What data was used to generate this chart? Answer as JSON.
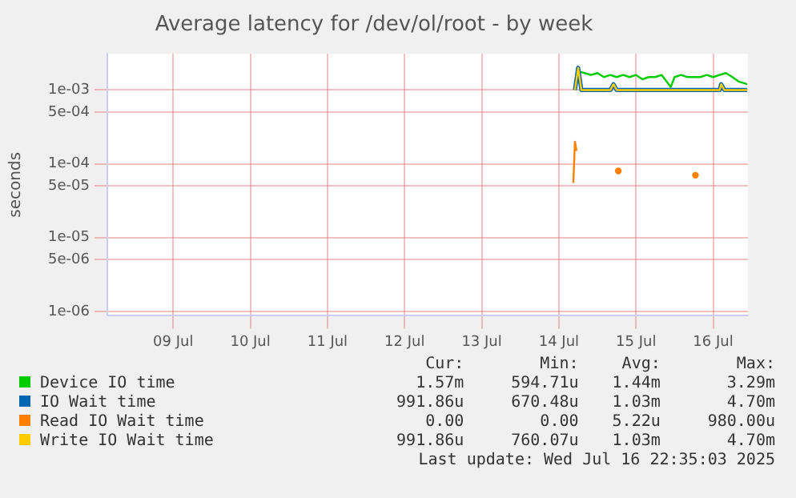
{
  "chart_data": {
    "type": "line",
    "title": "Average latency for /dev/ol/root - by week",
    "ylabel": "seconds",
    "log": "y",
    "grid": true,
    "legend": "bottom",
    "marker": "none",
    "line_style": "solid",
    "xlim": [
      "2025-07-08T15:30",
      "2025-07-16T22:50"
    ],
    "xticks": [
      {
        "value": "2025-07-09T12:00",
        "label": "09 Jul"
      },
      {
        "value": "2025-07-10T12:00",
        "label": "10 Jul"
      },
      {
        "value": "2025-07-11T12:00",
        "label": "11 Jul"
      },
      {
        "value": "2025-07-12T12:00",
        "label": "12 Jul"
      },
      {
        "value": "2025-07-13T12:00",
        "label": "13 Jul"
      },
      {
        "value": "2025-07-14T12:00",
        "label": "14 Jul"
      },
      {
        "value": "2025-07-15T12:00",
        "label": "15 Jul"
      },
      {
        "value": "2025-07-16T12:00",
        "label": "16 Jul"
      }
    ],
    "ylim": [
      8.7e-07,
      0.0031
    ],
    "yticks": [
      {
        "value": 1e-06,
        "label": "1e-06"
      },
      {
        "value": 5e-06,
        "label": "5e-06"
      },
      {
        "value": 1e-05,
        "label": "1e-05"
      },
      {
        "value": 5e-05,
        "label": "5e-05"
      },
      {
        "value": 0.0001,
        "label": "1e-04"
      },
      {
        "value": 0.0005,
        "label": "5e-04"
      },
      {
        "value": 0.001,
        "label": "1e-03"
      }
    ],
    "series": [
      {
        "name": "Device IO time",
        "color": "#00cc00",
        "x": [
          "2025-07-14T17:00",
          "2025-07-14T18:00",
          "2025-07-14T20:00",
          "2025-07-14T22:00",
          "2025-07-15T00:00",
          "2025-07-15T02:00",
          "2025-07-15T04:00",
          "2025-07-15T06:00",
          "2025-07-15T08:00",
          "2025-07-15T10:00",
          "2025-07-15T12:00",
          "2025-07-15T14:00",
          "2025-07-15T16:00",
          "2025-07-15T18:00",
          "2025-07-15T20:00",
          "2025-07-15T22:50",
          "2025-07-16T00:00",
          "2025-07-16T02:00",
          "2025-07-16T04:00",
          "2025-07-16T06:00",
          "2025-07-16T08:00",
          "2025-07-16T10:00",
          "2025-07-16T12:00",
          "2025-07-16T14:00",
          "2025-07-16T16:00",
          "2025-07-16T18:00",
          "2025-07-16T20:00",
          "2025-07-16T22:35"
        ],
        "values": [
          0.001,
          0.0018,
          0.0017,
          0.0016,
          0.0017,
          0.0015,
          0.0016,
          0.0015,
          0.0016,
          0.0015,
          0.0016,
          0.0014,
          0.0015,
          0.0015,
          0.0016,
          0.0011,
          0.0015,
          0.0016,
          0.0015,
          0.0015,
          0.0015,
          0.0016,
          0.0015,
          0.0016,
          0.0017,
          0.0015,
          0.0013,
          0.0012
        ]
      },
      {
        "name": "IO Wait time",
        "color": "#0066b3",
        "x": [
          "2025-07-14T17:00",
          "2025-07-14T18:00",
          "2025-07-14T19:00",
          "2025-07-15T00:00",
          "2025-07-15T04:00",
          "2025-07-15T05:00",
          "2025-07-15T06:00",
          "2025-07-15T12:00",
          "2025-07-16T00:00",
          "2025-07-16T14:00",
          "2025-07-16T14:30",
          "2025-07-16T15:30",
          "2025-07-16T22:35"
        ],
        "values": [
          0.001,
          0.002,
          0.001,
          0.001,
          0.001,
          0.0012,
          0.001,
          0.001,
          0.001,
          0.001,
          0.0012,
          0.001,
          0.001
        ]
      },
      {
        "name": "Read IO Wait time",
        "color": "#ff8000",
        "x": [
          "2025-07-14T16:30",
          "2025-07-14T17:00",
          "2025-07-14T17:30",
          "2025-07-14T18:00",
          "2025-07-15T06:00",
          "2025-07-15T06:30",
          "2025-07-15T07:00",
          "2025-07-16T06:00",
          "2025-07-16T06:30"
        ],
        "values": [
          5.5e-05,
          0.0002,
          0.00015,
          null,
          null,
          8e-05,
          null,
          null,
          7e-05
        ]
      },
      {
        "name": "Write IO Wait time",
        "color": "#ffcc00",
        "x": [
          "2025-07-14T17:00",
          "2025-07-14T18:00",
          "2025-07-14T19:00",
          "2025-07-15T00:00",
          "2025-07-15T04:00",
          "2025-07-15T05:00",
          "2025-07-15T06:00",
          "2025-07-15T12:00",
          "2025-07-16T00:00",
          "2025-07-16T14:00",
          "2025-07-16T14:30",
          "2025-07-16T15:30",
          "2025-07-16T22:35"
        ],
        "values": [
          0.001,
          0.002,
          0.001,
          0.001,
          0.001,
          0.0012,
          0.001,
          0.001,
          0.001,
          0.001,
          0.0012,
          0.001,
          0.001
        ]
      }
    ],
    "annotations": [
      "Cur:",
      "Min:",
      "Avg:",
      "Max:",
      "1.57m",
      "594.71u",
      "1.44m",
      "3.29m",
      "991.86u",
      "670.48u",
      "1.03m",
      "4.70m",
      "0.00",
      "0.00",
      "5.22u",
      "980.00u",
      "991.86u",
      "760.07u",
      "1.03m",
      "4.70m",
      "Last update: Wed Jul 16 22:35:03 2025"
    ]
  }
}
